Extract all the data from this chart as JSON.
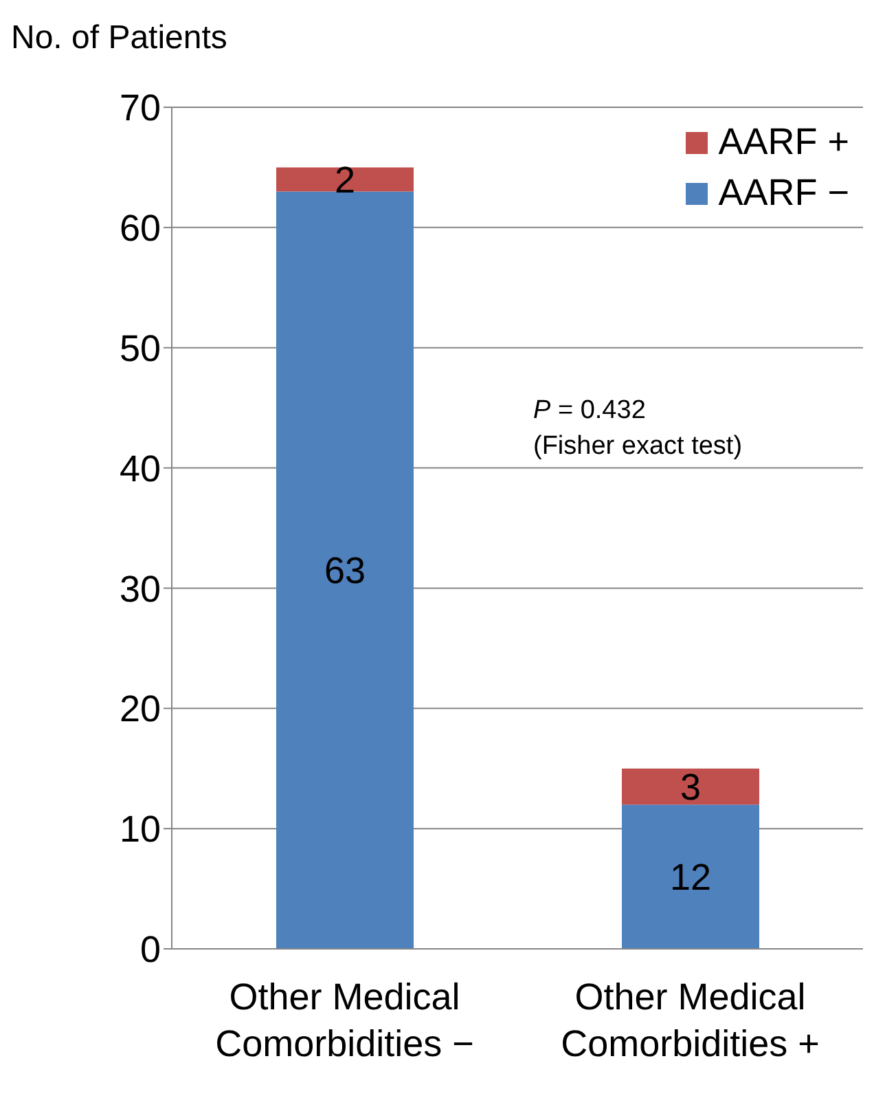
{
  "chart_data": {
    "type": "bar",
    "stacked": true,
    "ylabel": "No. of Patients",
    "categories": [
      "Other Medical Comorbidities −",
      "Other Medical Comorbidities +"
    ],
    "series": [
      {
        "name": "AARF −",
        "color": "#4f81bd",
        "values": [
          63,
          12
        ]
      },
      {
        "name": "AARF +",
        "color": "#c0504d",
        "values": [
          2,
          3
        ]
      }
    ],
    "ylim": [
      0,
      70
    ],
    "yticks": [
      0,
      10,
      20,
      30,
      40,
      50,
      60,
      70
    ],
    "grid": "y",
    "legend": "top right",
    "data_labels": true,
    "annotations": [
      "P = 0.432\n(Fisher exact test)"
    ]
  }
}
